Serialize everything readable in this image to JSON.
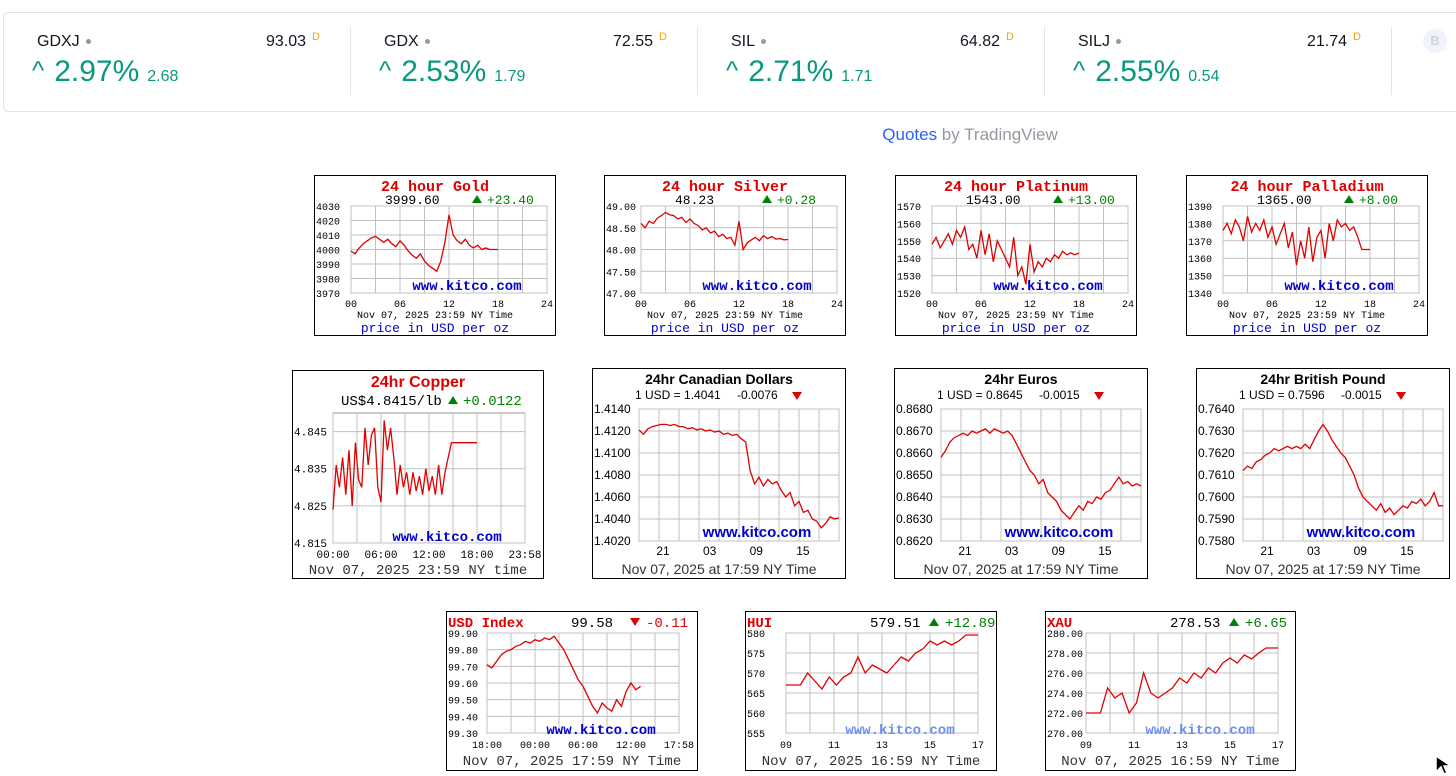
{
  "tickers": [
    {
      "symbol": "GDXJ",
      "price": "93.03",
      "flag": "D",
      "change_pct": "2.97%",
      "change_abs": "2.68"
    },
    {
      "symbol": "GDX",
      "price": "72.55",
      "flag": "D",
      "change_pct": "2.53%",
      "change_abs": "1.79"
    },
    {
      "symbol": "SIL",
      "price": "64.82",
      "flag": "D",
      "change_pct": "2.71%",
      "change_abs": "1.71"
    },
    {
      "symbol": "SILJ",
      "price": "21.74",
      "flag": "D",
      "change_pct": "2.55%",
      "change_abs": "0.54"
    }
  ],
  "ticker_avatar": "B",
  "attribution": {
    "link": "Quotes",
    "text": " by TradingView"
  },
  "colors": {
    "up_green": "#089981",
    "kitco_red": "#e00000",
    "kitco_green": "#008000",
    "kitco_blue": "#0000cc",
    "grid": "#c0c0c0"
  },
  "chart_data": [
    {
      "id": "gold",
      "type": "line",
      "title": "24 hour Gold",
      "price": "3999.60",
      "change": "+23.40",
      "direction": "up",
      "y_ticks": [
        "4030",
        "4020",
        "4010",
        "4000",
        "3990",
        "3980",
        "3970"
      ],
      "ylim": [
        3970,
        4030
      ],
      "x_ticks": [
        "00",
        "06",
        "12",
        "18",
        "24"
      ],
      "watermark": "www.kitco.com",
      "timestamp": "Nov 07, 2025 23:59 NY Time",
      "footer": "price in USD per oz",
      "x": [
        0,
        0.5,
        1,
        1.5,
        2,
        2.5,
        3,
        3.5,
        4,
        4.5,
        5,
        5.5,
        6,
        6.5,
        7,
        7.5,
        8,
        8.5,
        9,
        9.5,
        10,
        10.5,
        11,
        11.5,
        12,
        12.5,
        13,
        13.5,
        14,
        14.5,
        15,
        15.5,
        16,
        16.5,
        17,
        17.5,
        18
      ],
      "values": [
        3999,
        3997,
        4001,
        4004,
        4006,
        4008,
        4009,
        4007,
        4005,
        4007,
        4004,
        4002,
        4006,
        4003,
        3999,
        3996,
        3994,
        3997,
        3992,
        3989,
        3987,
        3985,
        3992,
        4005,
        4024,
        4010,
        4006,
        4004,
        4007,
        4003,
        4001,
        4003,
        4000,
        4001,
        4000,
        4000,
        4000
      ]
    },
    {
      "id": "silver",
      "type": "line",
      "title": "24 hour Silver",
      "price": "48.23",
      "change": "+0.28",
      "direction": "up",
      "y_ticks": [
        "49.00",
        "48.50",
        "48.00",
        "47.50",
        "47.00"
      ],
      "ylim": [
        47.0,
        49.0
      ],
      "x_ticks": [
        "00",
        "06",
        "12",
        "18",
        "24"
      ],
      "watermark": "www.kitco.com",
      "timestamp": "Nov 07, 2025 23:59 NY Time",
      "footer": "price in USD per oz",
      "x": [
        0,
        0.5,
        1,
        1.5,
        2,
        2.5,
        3,
        3.5,
        4,
        4.5,
        5,
        5.5,
        6,
        6.5,
        7,
        7.5,
        8,
        8.5,
        9,
        9.5,
        10,
        10.5,
        11,
        11.5,
        12,
        12.5,
        13,
        13.5,
        14,
        14.5,
        15,
        15.5,
        16,
        16.5,
        17,
        17.5,
        18
      ],
      "values": [
        48.6,
        48.5,
        48.65,
        48.6,
        48.72,
        48.78,
        48.85,
        48.8,
        48.78,
        48.7,
        48.74,
        48.62,
        48.7,
        48.6,
        48.55,
        48.45,
        48.5,
        48.38,
        48.42,
        48.3,
        48.35,
        48.25,
        48.28,
        48.1,
        48.65,
        48.0,
        48.15,
        48.22,
        48.28,
        48.2,
        48.32,
        48.25,
        48.3,
        48.24,
        48.25,
        48.22,
        48.23
      ]
    },
    {
      "id": "platinum",
      "type": "line",
      "title": "24 hour Platinum",
      "price": "1543.00",
      "change": "+13.00",
      "direction": "up",
      "y_ticks": [
        "1570",
        "1560",
        "1550",
        "1540",
        "1530",
        "1520"
      ],
      "ylim": [
        1520,
        1570
      ],
      "x_ticks": [
        "00",
        "06",
        "12",
        "18",
        "24"
      ],
      "watermark": "www.kitco.com",
      "timestamp": "Nov 07, 2025 23:59 NY Time",
      "footer": "price in USD per oz",
      "x": [
        0,
        0.5,
        1,
        1.5,
        2,
        2.5,
        3,
        3.5,
        4,
        4.5,
        5,
        5.5,
        6,
        6.5,
        7,
        7.5,
        8,
        8.5,
        9,
        9.5,
        10,
        10.5,
        11,
        11.5,
        12,
        12.5,
        13,
        13.5,
        14,
        14.5,
        15,
        15.5,
        16,
        16.5,
        17,
        17.5,
        18
      ],
      "values": [
        1548,
        1552,
        1546,
        1550,
        1554,
        1548,
        1556,
        1552,
        1558,
        1545,
        1548,
        1540,
        1556,
        1542,
        1554,
        1538,
        1550,
        1545,
        1540,
        1535,
        1552,
        1530,
        1535,
        1525,
        1548,
        1532,
        1538,
        1535,
        1540,
        1538,
        1542,
        1540,
        1544,
        1542,
        1543,
        1542,
        1543
      ]
    },
    {
      "id": "palladium",
      "type": "line",
      "title": "24 hour Palladium",
      "price": "1365.00",
      "change": "+8.00",
      "direction": "up",
      "y_ticks": [
        "1390",
        "1380",
        "1370",
        "1360",
        "1350",
        "1340"
      ],
      "ylim": [
        1340,
        1390
      ],
      "x_ticks": [
        "00",
        "06",
        "12",
        "18",
        "24"
      ],
      "watermark": "www.kitco.com",
      "timestamp": "Nov 07, 2025 23:59 NY Time",
      "footer": "price in USD per oz",
      "x": [
        0,
        0.5,
        1,
        1.5,
        2,
        2.5,
        3,
        3.5,
        4,
        4.5,
        5,
        5.5,
        6,
        6.5,
        7,
        7.5,
        8,
        8.5,
        9,
        9.5,
        10,
        10.5,
        11,
        11.5,
        12,
        12.5,
        13,
        13.5,
        14,
        14.5,
        15,
        15.5,
        16,
        16.5,
        17,
        17.5,
        18
      ],
      "values": [
        1376,
        1380,
        1374,
        1382,
        1378,
        1370,
        1384,
        1375,
        1380,
        1376,
        1382,
        1372,
        1378,
        1368,
        1374,
        1380,
        1366,
        1375,
        1356,
        1370,
        1360,
        1378,
        1358,
        1372,
        1376,
        1360,
        1380,
        1370,
        1382,
        1378,
        1380,
        1376,
        1378,
        1372,
        1365,
        1365,
        1365
      ]
    },
    {
      "id": "copper",
      "type": "line",
      "title": "24hr Copper",
      "price": "US$4.8415/lb",
      "change": "+0.0122",
      "direction": "up",
      "y_ticks": [
        "4.845",
        "4.835",
        "4.825",
        "4.815"
      ],
      "ylim": [
        4.815,
        4.85
      ],
      "x_ticks": [
        "00:00",
        "06:00",
        "12:00",
        "18:00",
        "23:58"
      ],
      "watermark": "www.kitco.com",
      "timestamp": "Nov 07, 2025 23:59 NY time",
      "footer": "",
      "x": [
        0,
        0.4,
        0.8,
        1.2,
        1.6,
        2.0,
        2.4,
        2.8,
        3.2,
        3.6,
        4.0,
        4.4,
        4.8,
        5.2,
        5.6,
        6.0,
        6.4,
        6.8,
        7.2,
        7.6,
        8.0,
        8.4,
        8.8,
        9.2,
        9.6,
        10.0,
        10.4,
        10.8,
        11.2,
        11.6,
        12.0,
        12.4,
        12.8,
        13.2,
        13.6,
        14.0,
        14.4,
        14.8,
        15.2,
        15.6,
        16.0,
        16.4,
        16.8,
        17.2,
        17.6,
        18.0
      ],
      "values": [
        4.824,
        4.836,
        4.83,
        4.838,
        4.828,
        4.84,
        4.825,
        4.842,
        4.832,
        4.83,
        4.846,
        4.836,
        4.844,
        4.846,
        4.83,
        4.826,
        4.848,
        4.84,
        4.846,
        4.838,
        4.828,
        4.836,
        4.83,
        4.834,
        4.828,
        4.834,
        4.829,
        4.833,
        4.828,
        4.835,
        4.829,
        4.833,
        4.828,
        4.836,
        4.828,
        4.834,
        4.838,
        4.842,
        4.842,
        4.842,
        4.842,
        4.842,
        4.842,
        4.842,
        4.842,
        4.842
      ]
    },
    {
      "id": "cad",
      "type": "line",
      "title": "24hr Canadian Dollars",
      "price": "1 USD = 1.4041",
      "change": "-0.0076",
      "direction": "down",
      "y_ticks": [
        "1.4140",
        "1.4120",
        "1.4100",
        "1.4080",
        "1.4060",
        "1.4040",
        "1.4020"
      ],
      "ylim": [
        1.402,
        1.414
      ],
      "x_ticks": [
        "21",
        "03",
        "09",
        "15"
      ],
      "watermark": "www.kitco.com",
      "timestamp": "Nov 07, 2025 at 17:59 NY Time",
      "footer": "",
      "x": [
        0,
        1,
        2,
        3,
        4,
        5,
        6,
        7,
        8,
        9,
        10,
        11,
        12,
        13,
        14,
        15,
        16,
        17,
        18,
        19,
        20,
        21,
        22,
        23,
        24,
        25,
        26,
        27,
        28,
        29,
        30,
        31,
        32,
        33,
        34,
        35,
        36,
        37,
        38,
        39,
        40,
        41,
        42,
        43,
        44,
        45
      ],
      "values": [
        1.4121,
        1.4117,
        1.4122,
        1.4124,
        1.4125,
        1.4126,
        1.4126,
        1.4125,
        1.4126,
        1.4124,
        1.4124,
        1.4122,
        1.4123,
        1.4121,
        1.4122,
        1.412,
        1.4121,
        1.4119,
        1.412,
        1.4117,
        1.4118,
        1.4116,
        1.4117,
        1.4113,
        1.411,
        1.4084,
        1.4072,
        1.4078,
        1.407,
        1.4076,
        1.4072,
        1.4074,
        1.4066,
        1.406,
        1.4064,
        1.4052,
        1.4056,
        1.4046,
        1.4048,
        1.404,
        1.4038,
        1.4032,
        1.4036,
        1.4042,
        1.404,
        1.4041
      ]
    },
    {
      "id": "eur",
      "type": "line",
      "title": "24hr Euros",
      "price": "1 USD = 0.8645",
      "change": "-0.0015",
      "direction": "down",
      "y_ticks": [
        "0.8680",
        "0.8670",
        "0.8660",
        "0.8650",
        "0.8640",
        "0.8630",
        "0.8620"
      ],
      "ylim": [
        0.862,
        0.868
      ],
      "x_ticks": [
        "21",
        "03",
        "09",
        "15"
      ],
      "watermark": "www.kitco.com",
      "timestamp": "Nov 07, 2025 at 17:59 NY Time",
      "footer": "",
      "x": [
        0,
        1,
        2,
        3,
        4,
        5,
        6,
        7,
        8,
        9,
        10,
        11,
        12,
        13,
        14,
        15,
        16,
        17,
        18,
        19,
        20,
        21,
        22,
        23,
        24,
        25,
        26,
        27,
        28,
        29,
        30,
        31,
        32,
        33,
        34,
        35,
        36,
        37,
        38,
        39,
        40,
        41,
        42,
        43,
        44,
        45
      ],
      "values": [
        0.8658,
        0.8661,
        0.8665,
        0.8667,
        0.8668,
        0.8669,
        0.8668,
        0.867,
        0.8669,
        0.867,
        0.8671,
        0.8669,
        0.8671,
        0.867,
        0.8669,
        0.867,
        0.8668,
        0.8664,
        0.866,
        0.8656,
        0.8652,
        0.865,
        0.8646,
        0.8648,
        0.8642,
        0.864,
        0.8638,
        0.8634,
        0.8632,
        0.863,
        0.8633,
        0.8636,
        0.8634,
        0.8638,
        0.8637,
        0.864,
        0.8639,
        0.8642,
        0.8643,
        0.8646,
        0.8649,
        0.8646,
        0.8647,
        0.8645,
        0.8646,
        0.8645
      ]
    },
    {
      "id": "gbp",
      "type": "line",
      "title": "24hr British Pound",
      "price": "1 USD = 0.7596",
      "change": "-0.0015",
      "direction": "down",
      "y_ticks": [
        "0.7640",
        "0.7630",
        "0.7620",
        "0.7610",
        "0.7600",
        "0.7590",
        "0.7580"
      ],
      "ylim": [
        0.758,
        0.764
      ],
      "x_ticks": [
        "21",
        "03",
        "09",
        "15"
      ],
      "watermark": "www.kitco.com",
      "timestamp": "Nov 07, 2025 at 17:59 NY Time",
      "footer": "",
      "x": [
        0,
        1,
        2,
        3,
        4,
        5,
        6,
        7,
        8,
        9,
        10,
        11,
        12,
        13,
        14,
        15,
        16,
        17,
        18,
        19,
        20,
        21,
        22,
        23,
        24,
        25,
        26,
        27,
        28,
        29,
        30,
        31,
        32,
        33,
        34,
        35,
        36,
        37,
        38,
        39,
        40,
        41,
        42,
        43,
        44,
        45
      ],
      "values": [
        0.7612,
        0.7614,
        0.7613,
        0.7616,
        0.7617,
        0.7619,
        0.762,
        0.7622,
        0.7621,
        0.7622,
        0.7623,
        0.7622,
        0.7623,
        0.7622,
        0.7624,
        0.7622,
        0.7626,
        0.763,
        0.7633,
        0.763,
        0.7626,
        0.7623,
        0.762,
        0.7618,
        0.7614,
        0.761,
        0.7604,
        0.76,
        0.7598,
        0.7596,
        0.7594,
        0.7597,
        0.7593,
        0.7595,
        0.7592,
        0.7594,
        0.7596,
        0.7595,
        0.7598,
        0.7597,
        0.7599,
        0.7596,
        0.7598,
        0.7602,
        0.7596,
        0.7596
      ]
    },
    {
      "id": "usd_index",
      "type": "line",
      "title": "USD Index",
      "price": "99.58",
      "change": "-0.11",
      "direction": "down",
      "y_ticks": [
        "99.90",
        "99.80",
        "99.70",
        "99.60",
        "99.50",
        "99.40",
        "99.30"
      ],
      "ylim": [
        99.3,
        99.9
      ],
      "x_ticks": [
        "18:00",
        "00:00",
        "06:00",
        "12:00",
        "17:58"
      ],
      "watermark": "www.kitco.com",
      "timestamp": "Nov 07, 2025 17:59 NY Time",
      "footer": "",
      "x": [
        0,
        0.6,
        1.2,
        1.8,
        2.4,
        3.0,
        3.6,
        4.2,
        4.8,
        5.4,
        6.0,
        6.6,
        7.2,
        7.8,
        8.4,
        9.0,
        9.6,
        10.2,
        10.8,
        11.4,
        12.0,
        12.6,
        13.2,
        13.8,
        14.4,
        15.0,
        15.6,
        16.2,
        16.8,
        17.4,
        18.0,
        18.6,
        19.2
      ],
      "values": [
        99.71,
        99.69,
        99.73,
        99.77,
        99.79,
        99.8,
        99.82,
        99.83,
        99.85,
        99.84,
        99.86,
        99.85,
        99.87,
        99.86,
        99.88,
        99.84,
        99.8,
        99.74,
        99.68,
        99.62,
        99.58,
        99.52,
        99.46,
        99.42,
        99.48,
        99.45,
        99.43,
        99.5,
        99.46,
        99.55,
        99.6,
        99.56,
        99.58
      ]
    },
    {
      "id": "hui",
      "type": "line",
      "title": "HUI",
      "price": "579.51",
      "change": "+12.89",
      "direction": "up",
      "y_ticks": [
        "580",
        "575",
        "570",
        "565",
        "560",
        "555"
      ],
      "ylim": [
        555,
        580
      ],
      "x_ticks": [
        "09",
        "11",
        "13",
        "15",
        "17"
      ],
      "watermark": "www.kitco.com",
      "timestamp": "Nov 07, 2025 16:59 NY Time",
      "footer": "",
      "x": [
        9.0,
        9.3,
        9.6,
        9.9,
        10.2,
        10.5,
        10.8,
        11.1,
        11.4,
        11.7,
        12.0,
        12.3,
        12.6,
        12.9,
        13.2,
        13.5,
        13.8,
        14.1,
        14.4,
        14.7,
        15.0,
        15.3,
        15.6,
        15.9,
        16.2,
        16.5,
        16.8,
        17.0
      ],
      "values": [
        567,
        567,
        567,
        570,
        568,
        566,
        569,
        567,
        569,
        570,
        574,
        570,
        572,
        571,
        570,
        572,
        574,
        573,
        575,
        576,
        578,
        577,
        578,
        577,
        578,
        579.5,
        579.5,
        579.5
      ]
    },
    {
      "id": "xau",
      "type": "line",
      "title": "XAU",
      "price": "278.53",
      "change": "+6.65",
      "direction": "up",
      "y_ticks": [
        "280.00",
        "278.00",
        "276.00",
        "274.00",
        "272.00",
        "270.00"
      ],
      "ylim": [
        270,
        280
      ],
      "x_ticks": [
        "09",
        "11",
        "13",
        "15",
        "17"
      ],
      "watermark": "www.kitco.com",
      "timestamp": "Nov 07, 2025 16:59 NY Time",
      "footer": "",
      "x": [
        9.0,
        9.3,
        9.6,
        9.9,
        10.2,
        10.5,
        10.8,
        11.1,
        11.4,
        11.7,
        12.0,
        12.3,
        12.6,
        12.9,
        13.2,
        13.5,
        13.8,
        14.1,
        14.4,
        14.7,
        15.0,
        15.3,
        15.6,
        15.9,
        16.2,
        16.5,
        16.8,
        17.0
      ],
      "values": [
        272,
        272,
        272,
        274.5,
        273.5,
        274,
        272,
        273,
        276,
        274,
        273.5,
        274,
        274.5,
        275.5,
        275,
        276,
        275.5,
        276.5,
        276,
        277,
        277.5,
        277,
        277.8,
        277.4,
        278,
        278.5,
        278.5,
        278.5
      ]
    }
  ]
}
